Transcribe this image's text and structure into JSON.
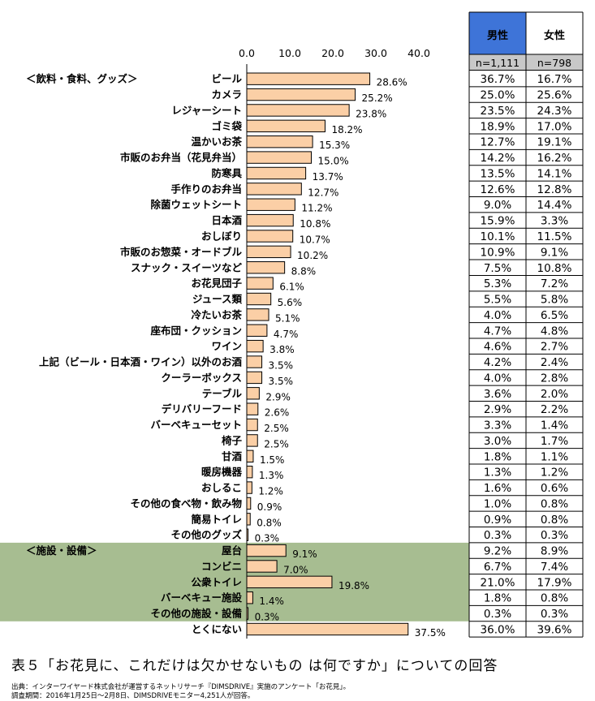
{
  "caption": "表５「お花見に、これだけは欠かせないもの は何ですか」についての回答",
  "source_line1": "出典：インターワイヤード株式会社が運営するネットリサーチ『DIMSDRIVE』実施のアンケート「お花見」。",
  "source_line2": "調査期間：2016年1月25日～2月8日、DIMSDRIVEモニター4,251人が回答。",
  "colors": {
    "bar_fill": "#fbcfa6",
    "bar_stroke": "#000000",
    "section_bg": "#a7bd91",
    "male_header": "#3e74d8",
    "female_header": "#ffffff",
    "n_row": "#c8c8c8"
  },
  "chart_data": {
    "type": "bar",
    "orientation": "horizontal",
    "xlim": [
      0,
      40
    ],
    "xticks": [
      "0.0",
      "10.0",
      "20.0",
      "30.0",
      "40.0"
    ],
    "groups": [
      {
        "label": "＜飲料・食料、グッズ＞",
        "start": 0,
        "end": 29,
        "highlight": false
      },
      {
        "label": "＜施設・設備＞",
        "start": 30,
        "end": 34,
        "highlight": true
      }
    ],
    "columns": [
      "男性",
      "女性"
    ],
    "n_labels": [
      "n=1,111",
      "n=798"
    ],
    "categories": [
      "ビール",
      "カメラ",
      "レジャーシート",
      "ゴミ袋",
      "温かいお茶",
      "市販のお弁当（花見弁当）",
      "防寒具",
      "手作りのお弁当",
      "除菌ウェットシート",
      "日本酒",
      "おしぼり",
      "市販のお惣菜・オードブル",
      "スナック・スイーツなど",
      "お花見団子",
      "ジュース類",
      "冷たいお茶",
      "座布団・クッション",
      "ワイン",
      "上記（ビール・日本酒・ワイン）以外のお酒",
      "クーラーボックス",
      "テーブル",
      "デリバリーフード",
      "バーベキューセット",
      "椅子",
      "甘酒",
      "暖房機器",
      "おしるこ",
      "その他の食べ物・飲み物",
      "簡易トイレ",
      "その他のグッズ",
      "屋台",
      "コンビニ",
      "公衆トイレ",
      "バーベキュー施設",
      "その他の施設・設備",
      "とくにない"
    ],
    "values": [
      28.6,
      25.2,
      23.8,
      18.2,
      15.3,
      15.0,
      13.7,
      12.7,
      11.2,
      10.8,
      10.7,
      10.2,
      8.8,
      6.1,
      5.6,
      5.1,
      4.7,
      3.8,
      3.5,
      3.5,
      2.9,
      2.6,
      2.5,
      2.5,
      1.5,
      1.3,
      1.2,
      0.9,
      0.8,
      0.3,
      9.1,
      7.0,
      19.8,
      1.4,
      0.3,
      37.5
    ],
    "value_labels": [
      "28.6%",
      "25.2%",
      "23.8%",
      "18.2%",
      "15.3%",
      "15.0%",
      "13.7%",
      "12.7%",
      "11.2%",
      "10.8%",
      "10.7%",
      "10.2%",
      "8.8%",
      "6.1%",
      "5.6%",
      "5.1%",
      "4.7%",
      "3.8%",
      "3.5%",
      "3.5%",
      "2.9%",
      "2.6%",
      "2.5%",
      "2.5%",
      "1.5%",
      "1.3%",
      "1.2%",
      "0.9%",
      "0.8%",
      "0.3%",
      "9.1%",
      "7.0%",
      "19.8%",
      "1.4%",
      "0.3%",
      "37.5%"
    ],
    "male": [
      "36.7%",
      "25.0%",
      "23.5%",
      "18.9%",
      "12.7%",
      "14.2%",
      "13.5%",
      "12.6%",
      "9.0%",
      "15.9%",
      "10.1%",
      "10.9%",
      "7.5%",
      "5.3%",
      "5.5%",
      "4.0%",
      "4.7%",
      "4.6%",
      "4.2%",
      "4.0%",
      "3.6%",
      "2.9%",
      "3.3%",
      "3.0%",
      "1.8%",
      "1.3%",
      "1.6%",
      "1.0%",
      "0.9%",
      "0.3%",
      "9.2%",
      "6.7%",
      "21.0%",
      "1.8%",
      "0.3%",
      "36.0%"
    ],
    "female": [
      "16.7%",
      "25.6%",
      "24.3%",
      "17.0%",
      "19.1%",
      "16.2%",
      "14.1%",
      "12.8%",
      "14.4%",
      "3.3%",
      "11.5%",
      "9.1%",
      "10.8%",
      "7.2%",
      "5.8%",
      "6.5%",
      "4.8%",
      "2.7%",
      "2.4%",
      "2.8%",
      "2.0%",
      "2.2%",
      "1.4%",
      "1.7%",
      "1.1%",
      "1.2%",
      "0.6%",
      "0.8%",
      "0.8%",
      "0.3%",
      "8.9%",
      "7.4%",
      "17.9%",
      "0.8%",
      "0.3%",
      "39.6%"
    ]
  }
}
